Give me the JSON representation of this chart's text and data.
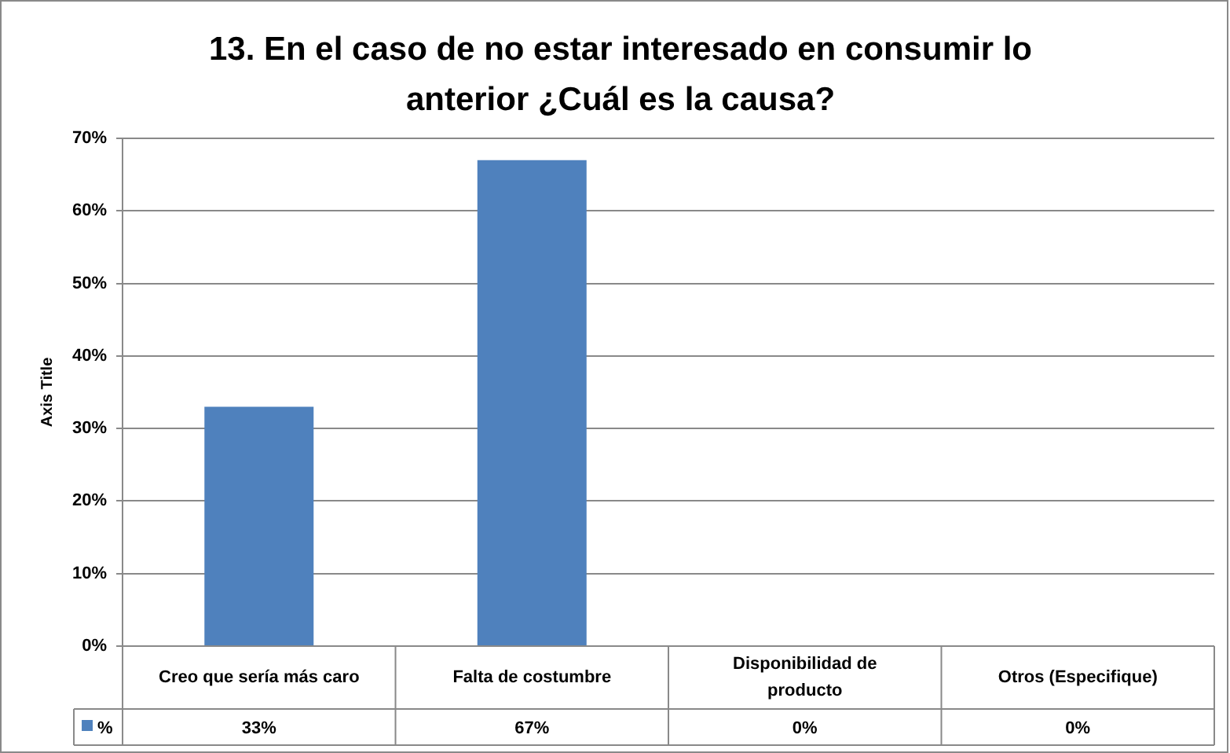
{
  "chart_data": {
    "type": "bar",
    "title": "13. En el caso de no estar interesado en consumir lo anterior ¿Cuál es la causa?",
    "ylabel": "Axis Title",
    "categories": [
      "Creo que sería más caro",
      "Falta de costumbre",
      "Disponibilidad de producto",
      "Otros (Especifique)"
    ],
    "series": [
      {
        "name": "%",
        "color": "#4f81bd",
        "values": [
          33,
          67,
          0,
          0
        ],
        "value_labels": [
          "33%",
          "67%",
          "0%",
          "0%"
        ]
      }
    ],
    "ylim": [
      0,
      70
    ],
    "yticks": [
      {
        "value": 0,
        "label": "0%"
      },
      {
        "value": 10,
        "label": "10%"
      },
      {
        "value": 20,
        "label": "20%"
      },
      {
        "value": 30,
        "label": "30%"
      },
      {
        "value": 40,
        "label": "40%"
      },
      {
        "value": 50,
        "label": "50%"
      },
      {
        "value": 60,
        "label": "60%"
      },
      {
        "value": 70,
        "label": "70%"
      }
    ],
    "grid": "y",
    "legend": "bottom"
  }
}
